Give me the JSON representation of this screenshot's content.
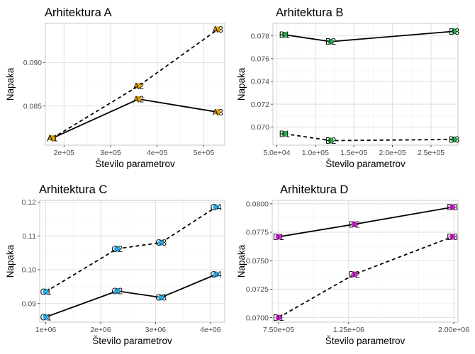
{
  "chart_data": [
    {
      "type": "line",
      "title": "Arhitektura A",
      "xlabel": "Število parametrov",
      "ylabel": "Napaka",
      "xlim": [
        160000,
        545000
      ],
      "ylim": [
        0.0805,
        0.0945
      ],
      "x_ticks": [
        200000,
        300000,
        400000,
        500000
      ],
      "x_tick_labels": [
        "2e+05",
        "3e+05",
        "4e+05",
        "5e+05"
      ],
      "y_ticks": [
        0.085,
        0.09
      ],
      "y_tick_labels": [
        "0.085",
        "0.090"
      ],
      "marker_color": "#E69F00",
      "series": [
        {
          "line": "solid",
          "points": [
            {
              "label": "A1",
              "x": 175000,
              "y": 0.0813
            },
            {
              "label": "A2",
              "x": 360000,
              "y": 0.0858
            },
            {
              "label": "A3",
              "x": 530000,
              "y": 0.0843
            }
          ]
        },
        {
          "line": "dashed",
          "points": [
            {
              "label": "A1",
              "x": 175000,
              "y": 0.0813
            },
            {
              "label": "A2",
              "x": 360000,
              "y": 0.0873
            },
            {
              "label": "A3",
              "x": 530000,
              "y": 0.0938
            }
          ]
        }
      ]
    },
    {
      "type": "line",
      "title": "Arhitektura B",
      "xlabel": "Število parametrov",
      "ylabel": "Napaka",
      "xlim": [
        45000,
        285000
      ],
      "ylim": [
        0.0684,
        0.0791
      ],
      "x_ticks": [
        50000,
        100000,
        150000,
        200000,
        250000
      ],
      "x_tick_labels": [
        "5.0e+04",
        "1.0e+05",
        "1.5e+05",
        "2.0e+05",
        "2.5e+05"
      ],
      "y_ticks": [
        0.07,
        0.072,
        0.074,
        0.076,
        0.078
      ],
      "y_tick_labels": [
        "0.070",
        "0.072",
        "0.074",
        "0.076",
        "0.078"
      ],
      "marker_color": "#22B14C",
      "series": [
        {
          "line": "solid",
          "points": [
            {
              "label": "B1",
              "x": 60000,
              "y": 0.0781
            },
            {
              "label": "B2",
              "x": 120000,
              "y": 0.0775
            },
            {
              "label": "B3",
              "x": 280000,
              "y": 0.0784
            }
          ]
        },
        {
          "line": "dashed",
          "points": [
            {
              "label": "B1",
              "x": 60000,
              "y": 0.0694
            },
            {
              "label": "B2",
              "x": 120000,
              "y": 0.0688
            },
            {
              "label": "B3",
              "x": 280000,
              "y": 0.0689
            }
          ]
        }
      ]
    },
    {
      "type": "line",
      "title": "Arhitektura C",
      "xlabel": "Število parametrov",
      "ylabel": "Napaka",
      "xlim": [
        890000,
        4260000
      ],
      "ylim": [
        0.0845,
        0.1205
      ],
      "x_ticks": [
        1000000,
        2000000,
        3000000,
        4000000
      ],
      "x_tick_labels": [
        "1e+06",
        "2e+06",
        "3e+06",
        "4e+06"
      ],
      "y_ticks": [
        0.09,
        0.1,
        0.11,
        0.12
      ],
      "y_tick_labels": [
        "0.09",
        "0.10",
        "0.11",
        "0.12"
      ],
      "marker_color": "#29A8E0",
      "series": [
        {
          "line": "solid",
          "points": [
            {
              "label": "C1",
              "x": 1000000,
              "y": 0.086
            },
            {
              "label": "C2",
              "x": 2300000,
              "y": 0.0937
            },
            {
              "label": "C3",
              "x": 3100000,
              "y": 0.0918
            },
            {
              "label": "C4",
              "x": 4100000,
              "y": 0.0986
            }
          ]
        },
        {
          "line": "dashed",
          "points": [
            {
              "label": "C1",
              "x": 1000000,
              "y": 0.0935
            },
            {
              "label": "C2",
              "x": 2300000,
              "y": 0.1062
            },
            {
              "label": "C3",
              "x": 3100000,
              "y": 0.108
            },
            {
              "label": "C4",
              "x": 4100000,
              "y": 0.1185
            }
          ]
        }
      ]
    },
    {
      "type": "line",
      "title": "Arhitektura D",
      "xlabel": "Število parametrov",
      "ylabel": "Napaka",
      "xlim": [
        705000,
        2030000
      ],
      "ylim": [
        0.0696,
        0.0803
      ],
      "x_ticks": [
        750000,
        1250000,
        2000000
      ],
      "x_tick_labels": [
        "7.50e+05",
        "1.25e+06",
        "2.00e+06"
      ],
      "minor_x_ticks": [
        1000000,
        1500000,
        1750000
      ],
      "y_ticks": [
        0.07,
        0.0725,
        0.075,
        0.0775,
        0.08
      ],
      "y_tick_labels": [
        "0.0700",
        "0.0725",
        "0.0750",
        "0.0775",
        "0.0800"
      ],
      "marker_color": "#E020E0",
      "series": [
        {
          "line": "solid",
          "points": [
            {
              "label": "D1",
              "x": 750000,
              "y": 0.0771
            },
            {
              "label": "D2",
              "x": 1290000,
              "y": 0.0782
            },
            {
              "label": "D3",
              "x": 1990000,
              "y": 0.0797
            }
          ]
        },
        {
          "line": "dashed",
          "points": [
            {
              "label": "D1",
              "x": 750000,
              "y": 0.07
            },
            {
              "label": "D2",
              "x": 1290000,
              "y": 0.0738
            },
            {
              "label": "D3",
              "x": 1990000,
              "y": 0.0771
            }
          ]
        }
      ]
    }
  ]
}
